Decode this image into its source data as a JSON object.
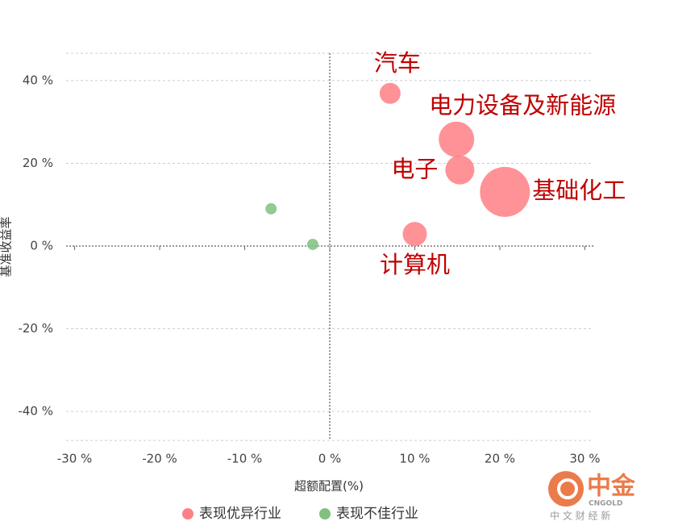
{
  "chart_data": {
    "type": "bubble",
    "xlabel": "超额配置(%)",
    "ylabel": "基准收益率",
    "xlim": [
      -31,
      31
    ],
    "ylim": [
      -47,
      47
    ],
    "xticks": [
      {
        "value": -30,
        "label": "-30 %"
      },
      {
        "value": -20,
        "label": "-20 %"
      },
      {
        "value": -10,
        "label": "-10 %"
      },
      {
        "value": 0,
        "label": "0 %"
      },
      {
        "value": 10,
        "label": "10 %"
      },
      {
        "value": 20,
        "label": "20 %"
      },
      {
        "value": 30,
        "label": "30 %"
      }
    ],
    "yticks": [
      {
        "value": -40,
        "label": "-40 %"
      },
      {
        "value": -20,
        "label": "-20 %"
      },
      {
        "value": 0,
        "label": "0 %"
      },
      {
        "value": 20,
        "label": "20 %"
      },
      {
        "value": 40,
        "label": "40 %"
      }
    ],
    "grid": true,
    "series": [
      {
        "name": "表现优异行业",
        "color": "#ff7f84",
        "x": [
          7.1,
          14.9,
          15.3,
          20.6,
          10.0
        ],
        "values": [
          36.9,
          25.8,
          18.4,
          13.1,
          2.9
        ],
        "sizes": [
          169,
          484,
          324,
          961,
          225
        ],
        "labels": [
          "汽车",
          "电力设备及新能源",
          "电子",
          "基础化工",
          "计算机"
        ]
      },
      {
        "name": "表现不佳行业",
        "color": "#80c080",
        "x": [
          -6.9,
          -2.0
        ],
        "values": [
          9.0,
          0.4
        ],
        "sizes": [
          49,
          49
        ]
      }
    ]
  },
  "watermark": {
    "brand": "中金",
    "code": "CNGOLD",
    "tagline": "中 文 财 经 新"
  }
}
